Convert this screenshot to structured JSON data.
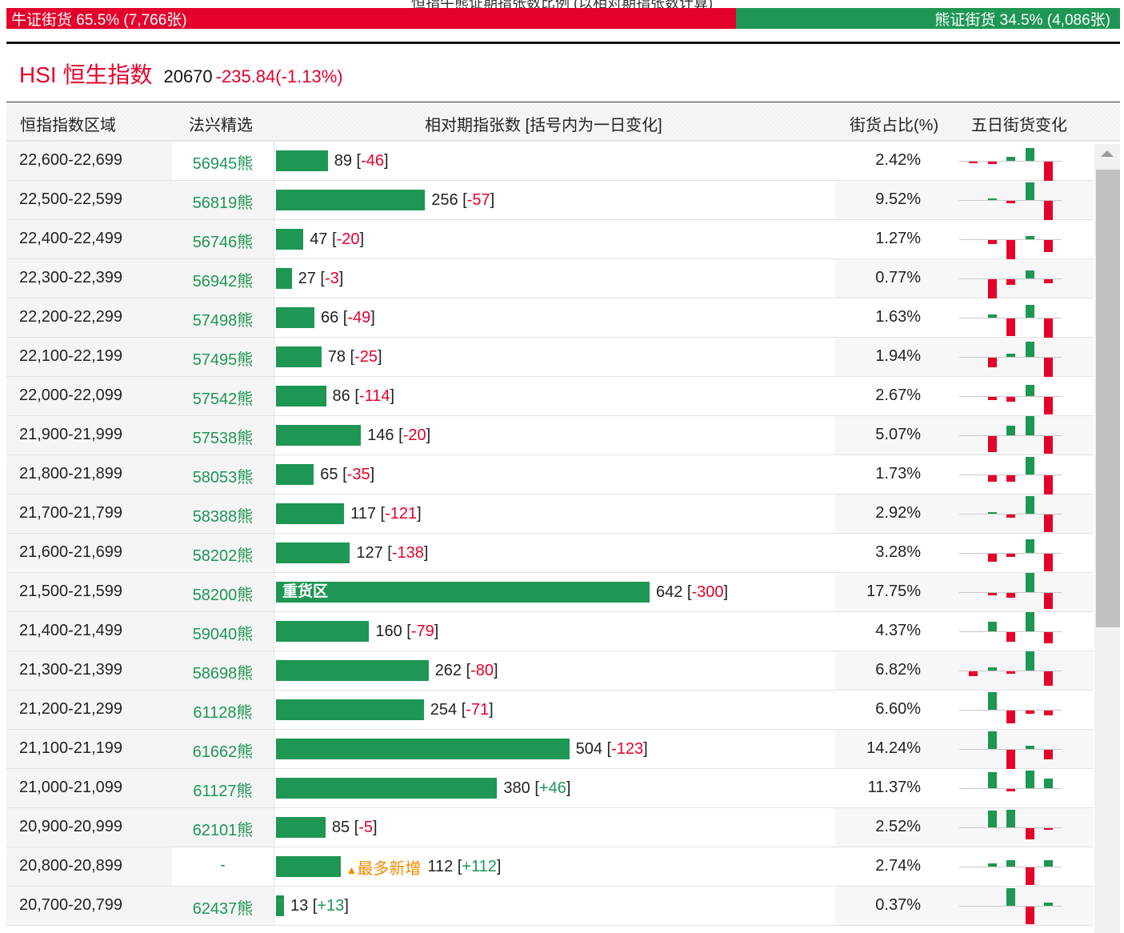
{
  "page_title": "恒指牛熊证期指张数比例 (以相对期指张数计算)",
  "ratio": {
    "bull_label": "牛证街货 65.5% (7,766张)",
    "bull_pct": 65.5,
    "bear_label": "熊证街货 34.5% (4,086张)",
    "bear_pct": 34.5,
    "bull_color": "#e4002b",
    "bear_color": "#1e9654"
  },
  "index": {
    "name": "HSI 恒生指数",
    "value": "20670",
    "change": "-235.84(-1.13%)"
  },
  "headers": {
    "range": "恒指指数区域",
    "pick": "法兴精选",
    "contracts": "相对期指张数 [括号内为一日变化]",
    "share": "街货占比(%)",
    "five_day": "五日街货变化"
  },
  "max_contracts": 642,
  "rows": [
    {
      "range": "22,600-22,699",
      "pick": "56945熊",
      "contracts": 89,
      "change": "-46",
      "share": "2.42%",
      "spark": [
        -2,
        -3,
        5,
        16,
        -24
      ]
    },
    {
      "range": "22,500-22,599",
      "pick": "56819熊",
      "contracts": 256,
      "change": "-57",
      "share": "9.52%",
      "spark": [
        0,
        2,
        -3,
        22,
        -24
      ]
    },
    {
      "range": "22,400-22,499",
      "pick": "56746熊",
      "contracts": 47,
      "change": "-20",
      "share": "1.27%",
      "spark": [
        0,
        -5,
        -24,
        4,
        -15
      ]
    },
    {
      "range": "22,300-22,399",
      "pick": "56942熊",
      "contracts": 27,
      "change": "-3",
      "share": "0.77%",
      "spark": [
        0,
        -24,
        -7,
        10,
        -5
      ]
    },
    {
      "range": "22,200-22,299",
      "pick": "57498熊",
      "contracts": 66,
      "change": "-49",
      "share": "1.63%",
      "spark": [
        0,
        4,
        -22,
        16,
        -24
      ]
    },
    {
      "range": "22,100-22,199",
      "pick": "57495熊",
      "contracts": 78,
      "change": "-25",
      "share": "1.94%",
      "spark": [
        0,
        -12,
        4,
        19,
        -24
      ]
    },
    {
      "range": "22,000-22,099",
      "pick": "57542熊",
      "contracts": 86,
      "change": "-114",
      "share": "2.67%",
      "spark": [
        0,
        -4,
        -6,
        14,
        -22
      ]
    },
    {
      "range": "21,900-21,999",
      "pick": "57538熊",
      "contracts": 146,
      "change": "-20",
      "share": "5.07%",
      "spark": [
        0,
        -20,
        12,
        24,
        -22
      ]
    },
    {
      "range": "21,800-21,899",
      "pick": "58053熊",
      "contracts": 65,
      "change": "-35",
      "share": "1.73%",
      "spark": [
        0,
        -8,
        -8,
        22,
        -24
      ]
    },
    {
      "range": "21,700-21,799",
      "pick": "58388熊",
      "contracts": 117,
      "change": "-121",
      "share": "2.92%",
      "spark": [
        0,
        2,
        -4,
        22,
        -22
      ]
    },
    {
      "range": "21,600-21,699",
      "pick": "58202熊",
      "contracts": 127,
      "change": "-138",
      "share": "3.28%",
      "spark": [
        0,
        -10,
        -4,
        17,
        -22
      ]
    },
    {
      "range": "21,500-21,599",
      "pick": "58200熊",
      "contracts": 642,
      "change": "-300",
      "share": "17.75%",
      "bar_label": "重货区",
      "spark": [
        0,
        -3,
        -6,
        24,
        -20
      ]
    },
    {
      "range": "21,400-21,499",
      "pick": "59040熊",
      "contracts": 160,
      "change": "-79",
      "share": "4.37%",
      "spark": [
        0,
        12,
        -12,
        24,
        -14
      ]
    },
    {
      "range": "21,300-21,399",
      "pick": "58698熊",
      "contracts": 262,
      "change": "-80",
      "share": "6.82%",
      "spark": [
        -6,
        4,
        -3,
        24,
        -18
      ]
    },
    {
      "range": "21,200-21,299",
      "pick": "61128熊",
      "contracts": 254,
      "change": "-71",
      "share": "6.60%",
      "spark": [
        0,
        22,
        -16,
        -4,
        -6
      ]
    },
    {
      "range": "21,100-21,199",
      "pick": "61662熊",
      "contracts": 504,
      "change": "-123",
      "share": "14.24%",
      "spark": [
        0,
        22,
        -24,
        4,
        -12
      ]
    },
    {
      "range": "21,000-21,099",
      "pick": "61127熊",
      "contracts": 380,
      "change": "+46",
      "share": "11.37%",
      "spark": [
        0,
        20,
        -3,
        22,
        12
      ]
    },
    {
      "range": "20,900-20,999",
      "pick": "62101熊",
      "contracts": 85,
      "change": "-5",
      "share": "2.52%",
      "spark": [
        0,
        21,
        22,
        -14,
        -2
      ]
    },
    {
      "range": "20,800-20,899",
      "pick": "-",
      "contracts": 112,
      "change": "+112",
      "share": "2.74%",
      "tag": "最多新增",
      "spark": [
        0,
        4,
        8,
        -22,
        8
      ]
    },
    {
      "range": "20,700-20,799",
      "pick": "62437熊",
      "contracts": 13,
      "change": "+13",
      "share": "0.37%",
      "spark": [
        0,
        0,
        22,
        -22,
        4
      ]
    }
  ]
}
